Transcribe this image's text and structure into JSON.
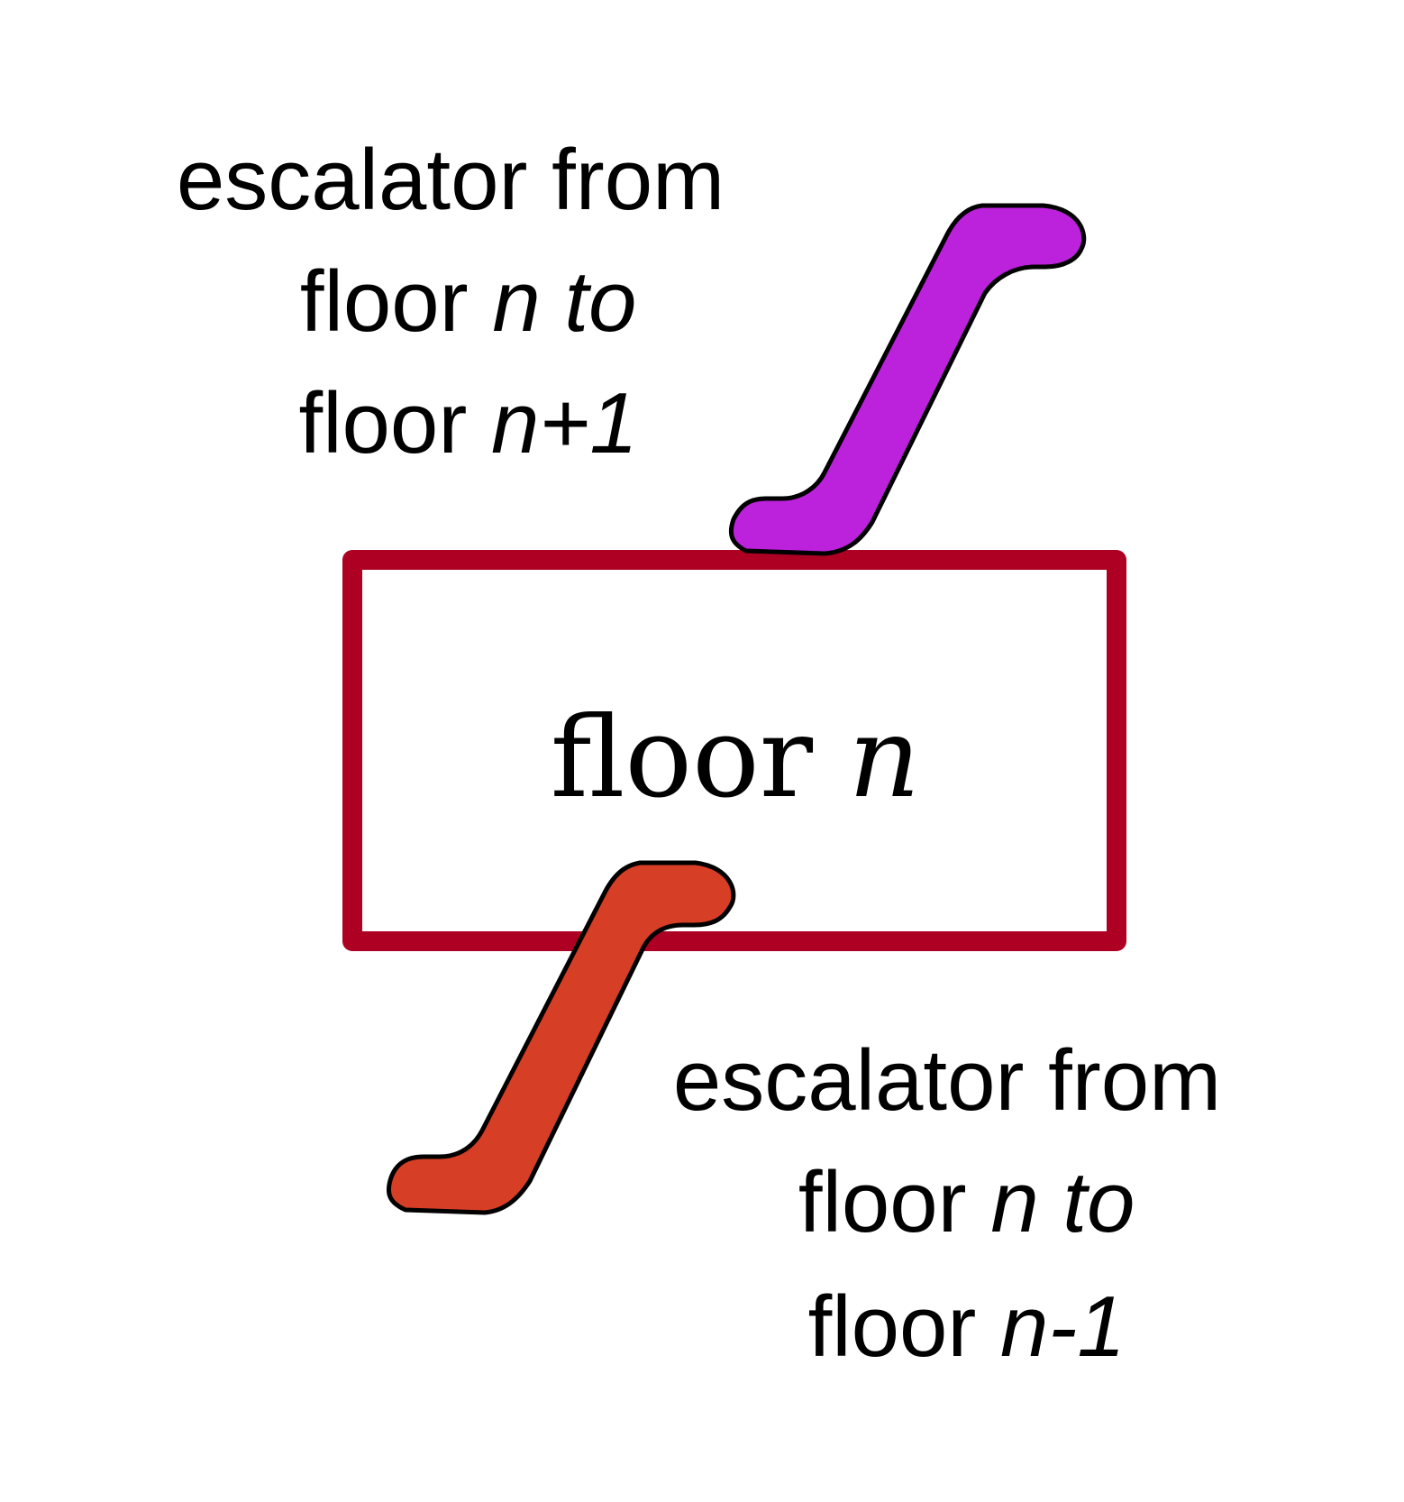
{
  "diagram": {
    "colors": {
      "floor_border": "#AE0022",
      "escalator_up": "#BC22DC",
      "escalator_down": "#D63E26",
      "outline": "#000000",
      "background": "#FFFFFF"
    },
    "floor_box": {
      "label_plain": "floor ",
      "label_var": "n"
    },
    "escalator_up": {
      "line1": "escalator from",
      "line2_plain": "floor ",
      "line2_var": "n to",
      "line3_plain": "floor ",
      "line3_var": "n+1"
    },
    "escalator_down": {
      "line1": "escalator from",
      "line2_plain": "floor ",
      "line2_var": "n to",
      "line3_plain": "floor ",
      "line3_var": "n-1"
    }
  }
}
